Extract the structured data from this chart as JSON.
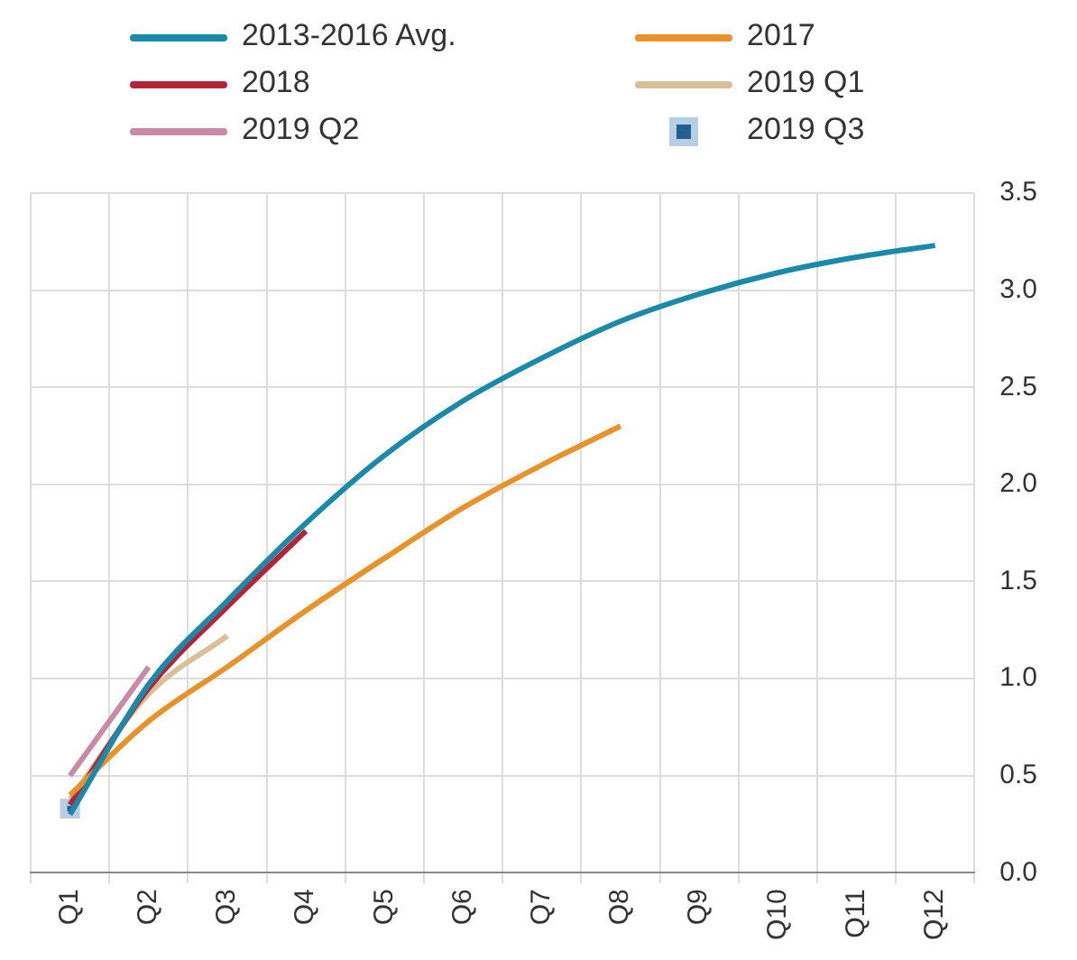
{
  "chart_data": {
    "type": "line",
    "categories": [
      "Q1",
      "Q2",
      "Q3",
      "Q4",
      "Q5",
      "Q6",
      "Q7",
      "Q8",
      "Q9",
      "Q10",
      "Q11",
      "Q12"
    ],
    "series": [
      {
        "name": "2013-2016 Avg.",
        "color": "#1a8aa8",
        "values": [
          0.3,
          0.97,
          1.4,
          1.8,
          2.15,
          2.43,
          2.65,
          2.84,
          2.98,
          3.09,
          3.17,
          3.23
        ]
      },
      {
        "name": "2017",
        "color": "#e8922a",
        "values": [
          0.4,
          0.78,
          1.06,
          1.35,
          1.62,
          1.88,
          2.1,
          2.3,
          null,
          null,
          null,
          null
        ]
      },
      {
        "name": "2018",
        "color": "#b3243a",
        "values": [
          0.35,
          0.95,
          1.37,
          1.76,
          null,
          null,
          null,
          null,
          null,
          null,
          null,
          null
        ]
      },
      {
        "name": "2019 Q1",
        "color": "#d9bf98",
        "values": [
          0.38,
          0.92,
          1.22,
          null,
          null,
          null,
          null,
          null,
          null,
          null,
          null,
          null
        ]
      },
      {
        "name": "2019 Q2",
        "color": "#c98aa8",
        "values": [
          0.5,
          1.06,
          null,
          null,
          null,
          null,
          null,
          null,
          null,
          null,
          null,
          null
        ]
      },
      {
        "name": "2019 Q3",
        "color": "#245f94",
        "type": "scatter",
        "marker": "square",
        "values": [
          0.33,
          null,
          null,
          null,
          null,
          null,
          null,
          null,
          null,
          null,
          null,
          null
        ]
      }
    ],
    "ylim": [
      0,
      3.5
    ],
    "yticks": [
      {
        "value": 0,
        "label": "0.0"
      },
      0.5,
      {
        "value": 1,
        "label": "1.0"
      },
      1.5,
      {
        "value": 2,
        "label": "2.0"
      },
      2.5,
      {
        "value": 3,
        "label": "3.0"
      },
      3.5
    ],
    "grid": true,
    "legend": "top"
  }
}
